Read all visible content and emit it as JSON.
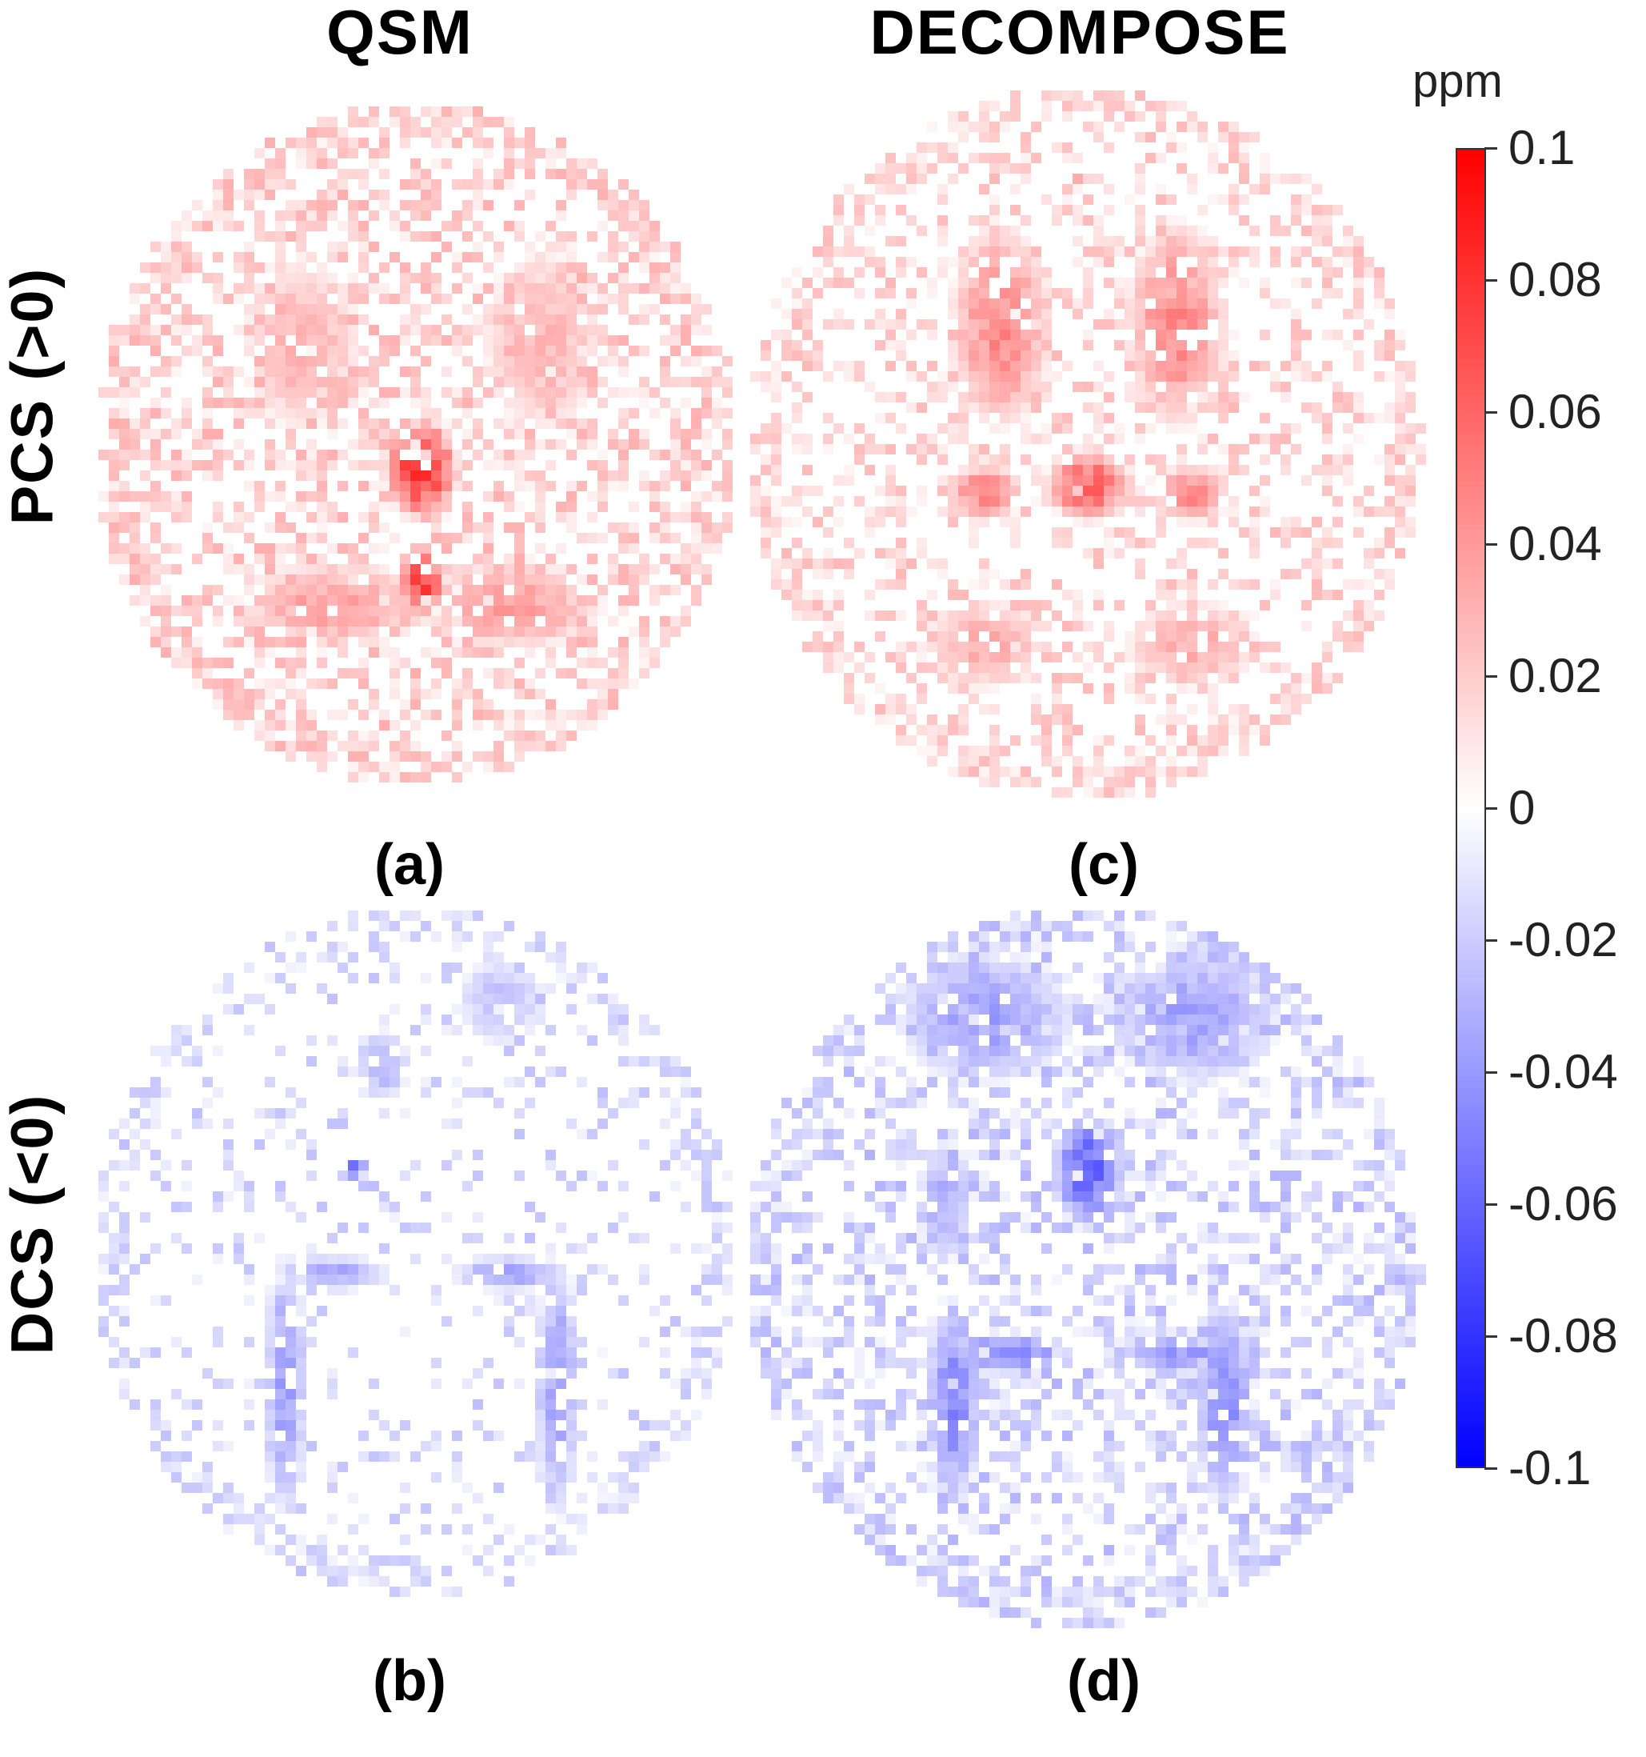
{
  "columns": {
    "qsm": "QSM",
    "decompose": "DECOMPOSE"
  },
  "rows": {
    "pcs": "PCS (>0)",
    "dcs": "DCS (<0)"
  },
  "panels": {
    "a": "(a)",
    "b": "(b)",
    "c": "(c)",
    "d": "(d)"
  },
  "colorbar": {
    "unit": "ppm",
    "ticks": [
      "0.1",
      "0.08",
      "0.06",
      "0.04",
      "0.02",
      "0",
      "-0.02",
      "-0.04",
      "-0.06",
      "-0.08",
      "-0.1"
    ],
    "colors": {
      "max": "#ff0000",
      "mid": "#ffffff",
      "min": "#0000ff"
    }
  }
}
